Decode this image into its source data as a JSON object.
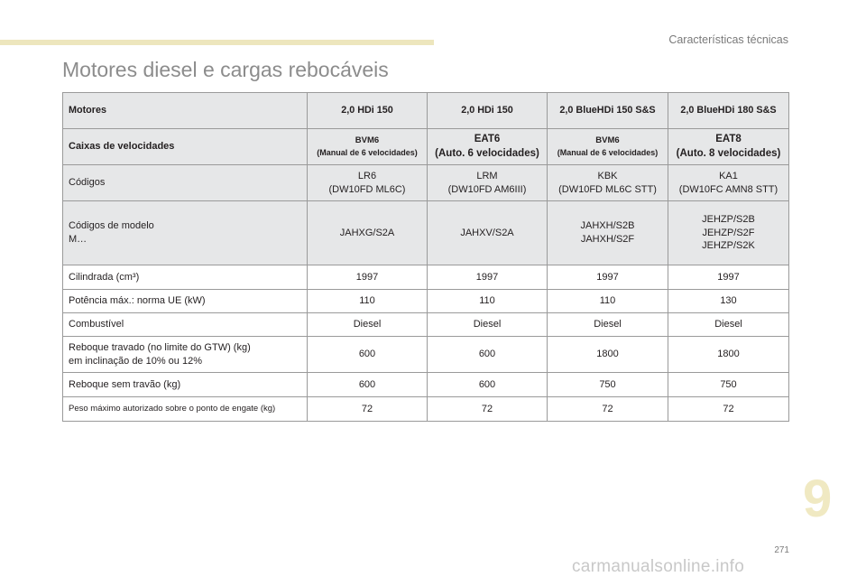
{
  "header": {
    "section_title": "Características técnicas",
    "colors": {
      "accent_bar": "#ede6bd",
      "chapter_number": "#f0e9c2",
      "cell_shade": "#e6e7e8"
    }
  },
  "page_title": "Motores diesel e cargas rebocáveis",
  "table": {
    "header": {
      "label": "Motores",
      "columns": [
        "2,0 HDi 150",
        "2,0 HDi 150",
        "2,0 BlueHDi 150 S&S",
        "2,0 BlueHDi 180 S&S"
      ]
    },
    "gearbox": {
      "label": "Caixas de velocidades",
      "columns": [
        {
          "name": "BVM6",
          "detail": "(Manual de 6 velocidades)"
        },
        {
          "name": "EAT6",
          "detail": "(Auto. 6 velocidades)"
        },
        {
          "name": "BVM6",
          "detail": "(Manual de 6 velocidades)"
        },
        {
          "name": "EAT8",
          "detail": "(Auto. 8 velocidades)"
        }
      ]
    },
    "codes": {
      "label": "Códigos",
      "columns": [
        {
          "code": "LR6",
          "engine": "(DW10FD ML6C)"
        },
        {
          "code": "LRM",
          "engine": "(DW10FD AM6III)"
        },
        {
          "code": "KBK",
          "engine": "(DW10FD ML6C STT)"
        },
        {
          "code": "KA1",
          "engine": "(DW10FC AMN8 STT)"
        }
      ]
    },
    "model_codes": {
      "label_line1": "Códigos de modelo",
      "label_line2": "M…",
      "columns": [
        [
          "JAHXG/S2A"
        ],
        [
          "JAHXV/S2A"
        ],
        [
          "JAHXH/S2B",
          "JAHXH/S2F"
        ],
        [
          "JEHZP/S2B",
          "JEHZP/S2F",
          "JEHZP/S2K"
        ]
      ]
    },
    "rows": [
      {
        "label": "Cilindrada (cm³)",
        "values": [
          "1997",
          "1997",
          "1997",
          "1997"
        ]
      },
      {
        "label": "Potência máx.: norma UE (kW)",
        "values": [
          "110",
          "110",
          "110",
          "130"
        ]
      },
      {
        "label": "Combustível",
        "values": [
          "Diesel",
          "Diesel",
          "Diesel",
          "Diesel"
        ]
      },
      {
        "label": "Reboque travado (no limite do GTW) (kg)",
        "label_line2": "em inclinação de 10% ou 12%",
        "values": [
          "600",
          "600",
          "1800",
          "1800"
        ]
      },
      {
        "label": "Reboque sem travão (kg)",
        "values": [
          "600",
          "600",
          "750",
          "750"
        ]
      },
      {
        "label": "Peso máximo autorizado sobre o ponto de engate (kg)",
        "values": [
          "72",
          "72",
          "72",
          "72"
        ]
      }
    ]
  },
  "chapter_number": "9",
  "page_number": "271",
  "watermark": "carmanualsonline.info"
}
